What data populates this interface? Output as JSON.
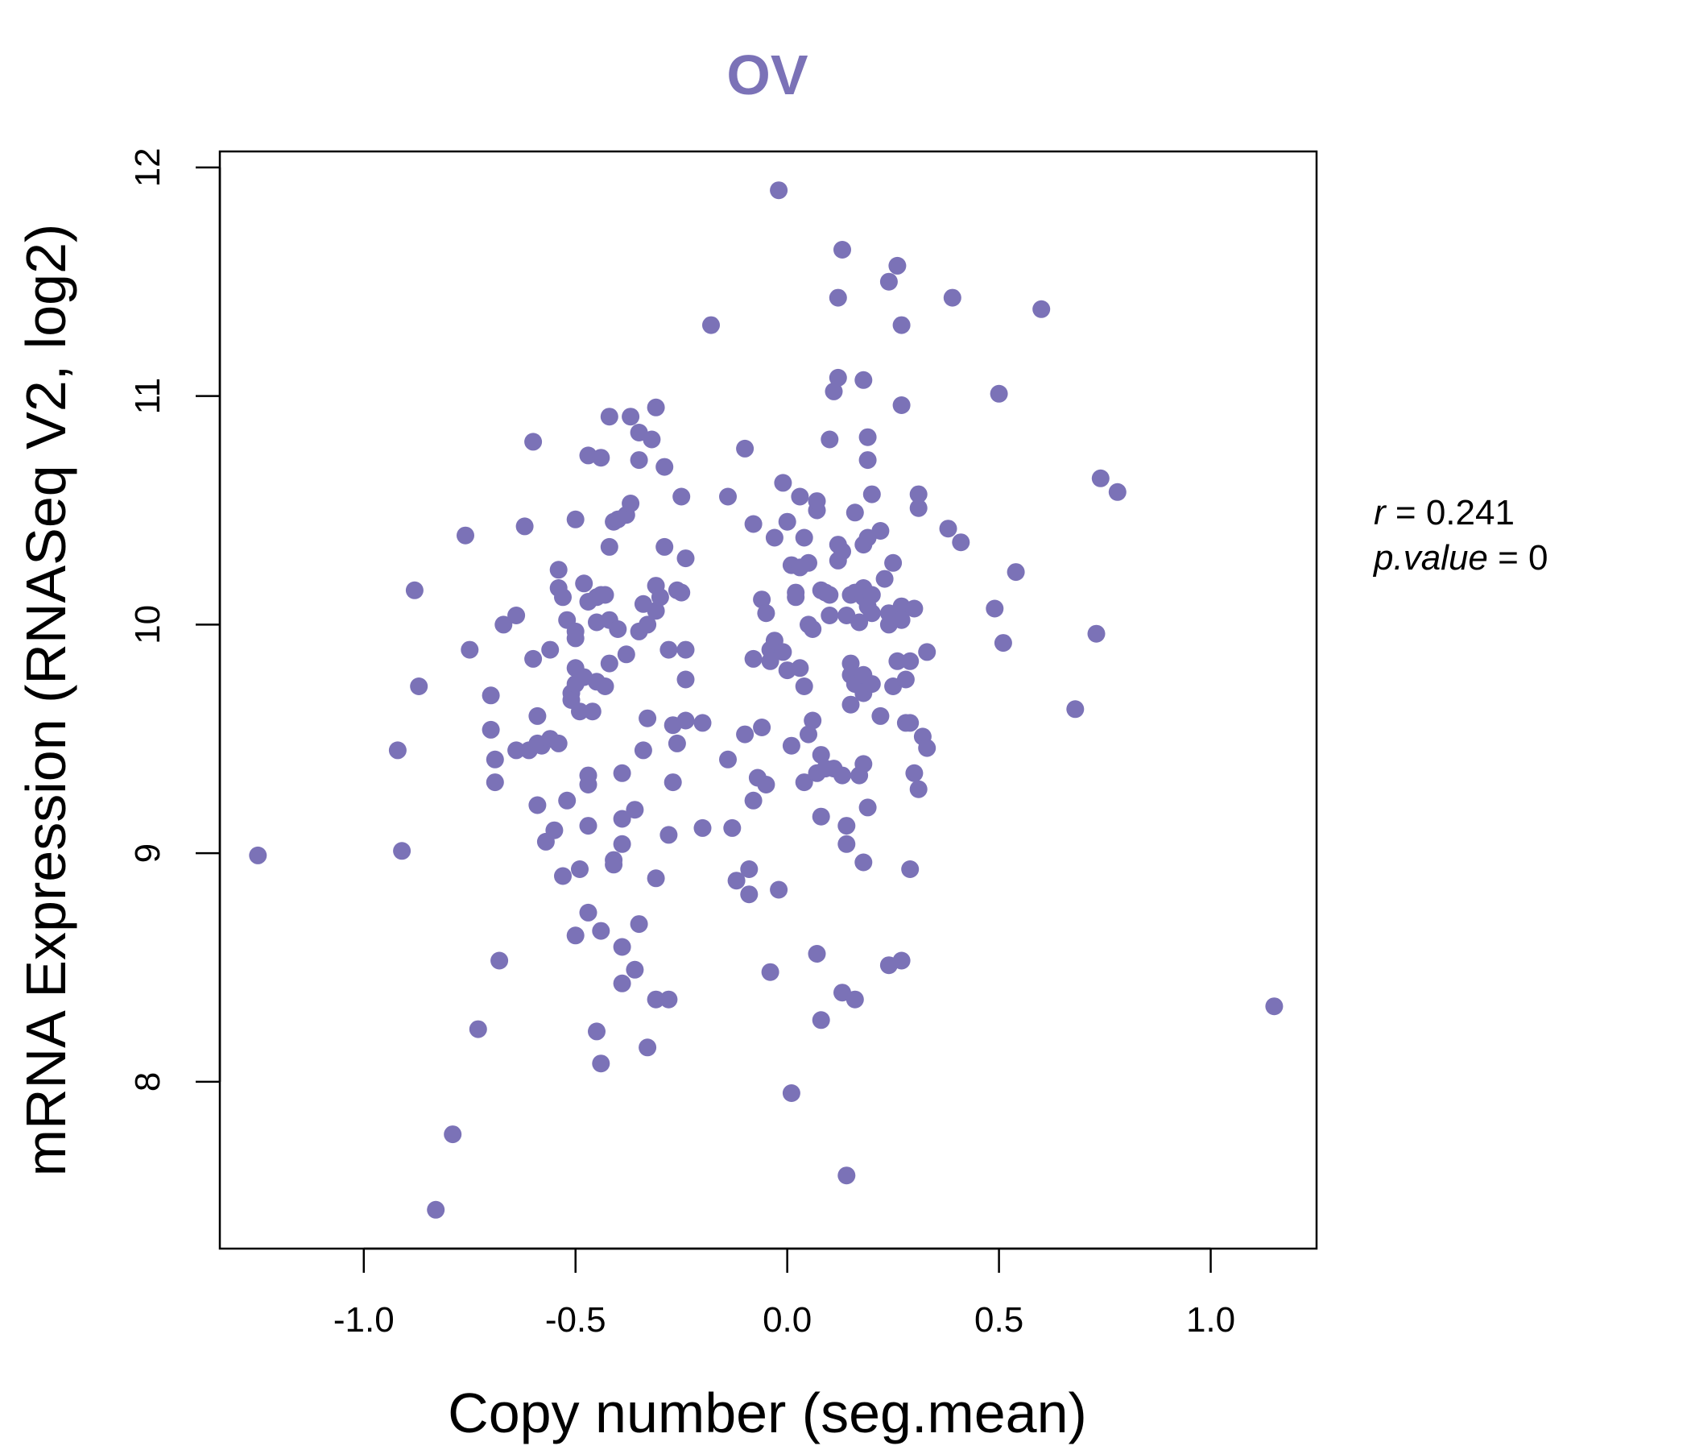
{
  "chart_data": {
    "type": "scatter",
    "title": "OV",
    "xlabel": "Copy number (seg.mean)",
    "ylabel": "mRNA Expression (RNASeq V2, log2)",
    "xlim": [
      -1.34,
      1.25
    ],
    "ylim": [
      7.27,
      12.07
    ],
    "x_ticks": [
      -1.0,
      -0.5,
      0.0,
      0.5,
      1.0
    ],
    "x_tick_labels": [
      "-1.0",
      "-0.5",
      "0.0",
      "0.5",
      "1.0"
    ],
    "y_ticks": [
      8,
      9,
      10,
      11,
      12
    ],
    "y_tick_labels": [
      "8",
      "9",
      "10",
      "11",
      "12"
    ],
    "stats": {
      "r_label": "r",
      "r_value": "0.241",
      "p_label": "p.value",
      "p_value": "0"
    },
    "colors": {
      "points": "#7b72b7",
      "title": "#7b72b7",
      "axes": "#000000"
    },
    "grid": false,
    "points": [
      [
        -1.25,
        8.99
      ],
      [
        -0.92,
        9.45
      ],
      [
        -0.91,
        9.01
      ],
      [
        -0.88,
        10.15
      ],
      [
        -0.87,
        9.73
      ],
      [
        -0.83,
        7.44
      ],
      [
        -0.79,
        7.77
      ],
      [
        -0.76,
        10.39
      ],
      [
        -0.75,
        9.89
      ],
      [
        -0.73,
        8.23
      ],
      [
        -0.7,
        9.69
      ],
      [
        -0.7,
        9.54
      ],
      [
        -0.69,
        9.41
      ],
      [
        -0.69,
        9.31
      ],
      [
        -0.68,
        8.53
      ],
      [
        -0.67,
        10.0
      ],
      [
        -0.64,
        10.04
      ],
      [
        -0.64,
        9.45
      ],
      [
        -0.62,
        10.43
      ],
      [
        -0.61,
        9.45
      ],
      [
        -0.6,
        10.8
      ],
      [
        -0.6,
        9.85
      ],
      [
        -0.59,
        9.6
      ],
      [
        -0.59,
        9.48
      ],
      [
        -0.59,
        9.21
      ],
      [
        -0.58,
        9.47
      ],
      [
        -0.57,
        9.05
      ],
      [
        -0.56,
        9.89
      ],
      [
        -0.56,
        9.5
      ],
      [
        -0.55,
        9.1
      ],
      [
        -0.54,
        10.24
      ],
      [
        -0.54,
        10.16
      ],
      [
        -0.54,
        9.48
      ],
      [
        -0.53,
        10.12
      ],
      [
        -0.53,
        8.9
      ],
      [
        -0.52,
        10.02
      ],
      [
        -0.52,
        9.23
      ],
      [
        -0.51,
        9.7
      ],
      [
        -0.51,
        9.67
      ],
      [
        -0.5,
        10.46
      ],
      [
        -0.5,
        9.97
      ],
      [
        -0.5,
        9.94
      ],
      [
        -0.5,
        9.81
      ],
      [
        -0.5,
        9.74
      ],
      [
        -0.5,
        8.64
      ],
      [
        -0.49,
        9.62
      ],
      [
        -0.49,
        8.93
      ],
      [
        -0.48,
        10.18
      ],
      [
        -0.48,
        9.77
      ],
      [
        -0.47,
        10.74
      ],
      [
        -0.47,
        10.1
      ],
      [
        -0.47,
        9.34
      ],
      [
        -0.47,
        9.3
      ],
      [
        -0.47,
        9.12
      ],
      [
        -0.47,
        8.74
      ],
      [
        -0.46,
        9.62
      ],
      [
        -0.45,
        10.12
      ],
      [
        -0.45,
        10.01
      ],
      [
        -0.45,
        9.75
      ],
      [
        -0.45,
        8.22
      ],
      [
        -0.44,
        10.73
      ],
      [
        -0.44,
        10.13
      ],
      [
        -0.44,
        8.66
      ],
      [
        -0.44,
        8.08
      ],
      [
        -0.43,
        10.13
      ],
      [
        -0.43,
        9.73
      ],
      [
        -0.42,
        10.91
      ],
      [
        -0.42,
        10.34
      ],
      [
        -0.42,
        10.02
      ],
      [
        -0.42,
        9.83
      ],
      [
        -0.41,
        10.45
      ],
      [
        -0.41,
        8.97
      ],
      [
        -0.41,
        8.95
      ],
      [
        -0.4,
        10.46
      ],
      [
        -0.4,
        9.98
      ],
      [
        -0.39,
        9.35
      ],
      [
        -0.39,
        9.15
      ],
      [
        -0.39,
        9.04
      ],
      [
        -0.39,
        8.59
      ],
      [
        -0.39,
        8.43
      ],
      [
        -0.38,
        10.48
      ],
      [
        -0.38,
        9.87
      ],
      [
        -0.37,
        10.53
      ],
      [
        -0.37,
        10.91
      ],
      [
        -0.36,
        9.19
      ],
      [
        -0.36,
        8.49
      ],
      [
        -0.35,
        10.72
      ],
      [
        -0.35,
        10.84
      ],
      [
        -0.35,
        9.97
      ],
      [
        -0.35,
        8.69
      ],
      [
        -0.34,
        10.09
      ],
      [
        -0.34,
        9.45
      ],
      [
        -0.33,
        10.0
      ],
      [
        -0.33,
        9.59
      ],
      [
        -0.33,
        8.15
      ],
      [
        -0.32,
        10.81
      ],
      [
        -0.31,
        10.95
      ],
      [
        -0.31,
        10.17
      ],
      [
        -0.31,
        10.06
      ],
      [
        -0.31,
        8.36
      ],
      [
        -0.31,
        8.89
      ],
      [
        -0.3,
        10.12
      ],
      [
        -0.29,
        10.69
      ],
      [
        -0.29,
        10.34
      ],
      [
        -0.28,
        9.89
      ],
      [
        -0.28,
        9.08
      ],
      [
        -0.28,
        8.36
      ],
      [
        -0.27,
        9.56
      ],
      [
        -0.27,
        9.31
      ],
      [
        -0.26,
        10.15
      ],
      [
        -0.26,
        9.48
      ],
      [
        -0.25,
        10.14
      ],
      [
        -0.25,
        10.56
      ],
      [
        -0.24,
        10.29
      ],
      [
        -0.24,
        9.89
      ],
      [
        -0.24,
        9.76
      ],
      [
        -0.24,
        9.58
      ],
      [
        -0.2,
        9.57
      ],
      [
        -0.2,
        9.11
      ],
      [
        -0.18,
        11.31
      ],
      [
        -0.14,
        10.56
      ],
      [
        -0.14,
        9.41
      ],
      [
        -0.13,
        9.11
      ],
      [
        -0.12,
        8.88
      ],
      [
        -0.1,
        10.77
      ],
      [
        -0.1,
        9.52
      ],
      [
        -0.09,
        8.93
      ],
      [
        -0.09,
        8.82
      ],
      [
        -0.08,
        10.44
      ],
      [
        -0.08,
        9.85
      ],
      [
        -0.08,
        9.23
      ],
      [
        -0.07,
        9.33
      ],
      [
        -0.06,
        10.11
      ],
      [
        -0.06,
        9.55
      ],
      [
        -0.05,
        10.05
      ],
      [
        -0.05,
        9.3
      ],
      [
        -0.04,
        9.89
      ],
      [
        -0.04,
        9.84
      ],
      [
        -0.04,
        8.48
      ],
      [
        -0.03,
        9.93
      ],
      [
        -0.03,
        10.38
      ],
      [
        -0.02,
        11.9
      ],
      [
        -0.02,
        8.84
      ],
      [
        -0.01,
        9.88
      ],
      [
        -0.01,
        10.62
      ],
      [
        0.0,
        10.45
      ],
      [
        0.0,
        9.8
      ],
      [
        0.01,
        10.26
      ],
      [
        0.01,
        9.47
      ],
      [
        0.01,
        7.95
      ],
      [
        0.02,
        10.14
      ],
      [
        0.02,
        10.12
      ],
      [
        0.03,
        10.25
      ],
      [
        0.03,
        9.81
      ],
      [
        0.03,
        10.56
      ],
      [
        0.04,
        9.73
      ],
      [
        0.04,
        10.38
      ],
      [
        0.04,
        9.31
      ],
      [
        0.05,
        10.0
      ],
      [
        0.05,
        10.27
      ],
      [
        0.05,
        9.52
      ],
      [
        0.06,
        9.98
      ],
      [
        0.06,
        9.58
      ],
      [
        0.07,
        10.5
      ],
      [
        0.07,
        10.54
      ],
      [
        0.07,
        9.35
      ],
      [
        0.07,
        8.56
      ],
      [
        0.08,
        10.15
      ],
      [
        0.08,
        9.43
      ],
      [
        0.08,
        9.16
      ],
      [
        0.08,
        8.27
      ],
      [
        0.09,
        10.14
      ],
      [
        0.09,
        9.37
      ],
      [
        0.1,
        10.81
      ],
      [
        0.1,
        10.13
      ],
      [
        0.1,
        10.04
      ],
      [
        0.11,
        11.02
      ],
      [
        0.11,
        9.37
      ],
      [
        0.12,
        11.08
      ],
      [
        0.12,
        10.35
      ],
      [
        0.12,
        10.28
      ],
      [
        0.12,
        11.43
      ],
      [
        0.13,
        11.64
      ],
      [
        0.13,
        10.32
      ],
      [
        0.13,
        8.39
      ],
      [
        0.13,
        9.34
      ],
      [
        0.14,
        9.12
      ],
      [
        0.14,
        9.04
      ],
      [
        0.14,
        7.59
      ],
      [
        0.14,
        10.04
      ],
      [
        0.15,
        10.13
      ],
      [
        0.15,
        9.83
      ],
      [
        0.15,
        9.78
      ],
      [
        0.15,
        9.65
      ],
      [
        0.16,
        10.49
      ],
      [
        0.16,
        10.14
      ],
      [
        0.16,
        9.74
      ],
      [
        0.16,
        8.36
      ],
      [
        0.17,
        10.01
      ],
      [
        0.17,
        9.75
      ],
      [
        0.17,
        9.34
      ],
      [
        0.18,
        10.16
      ],
      [
        0.18,
        10.12
      ],
      [
        0.18,
        9.78
      ],
      [
        0.18,
        9.7
      ],
      [
        0.18,
        9.39
      ],
      [
        0.18,
        8.96
      ],
      [
        0.18,
        11.07
      ],
      [
        0.18,
        10.35
      ],
      [
        0.19,
        10.72
      ],
      [
        0.19,
        10.38
      ],
      [
        0.19,
        10.82
      ],
      [
        0.19,
        10.08
      ],
      [
        0.19,
        9.2
      ],
      [
        0.2,
        10.57
      ],
      [
        0.2,
        10.13
      ],
      [
        0.2,
        10.05
      ],
      [
        0.2,
        9.74
      ],
      [
        0.22,
        10.41
      ],
      [
        0.22,
        9.6
      ],
      [
        0.23,
        10.2
      ],
      [
        0.24,
        10.05
      ],
      [
        0.24,
        10.0
      ],
      [
        0.24,
        8.51
      ],
      [
        0.24,
        11.5
      ],
      [
        0.25,
        10.27
      ],
      [
        0.25,
        9.73
      ],
      [
        0.26,
        11.57
      ],
      [
        0.26,
        9.84
      ],
      [
        0.27,
        10.08
      ],
      [
        0.27,
        10.02
      ],
      [
        0.27,
        11.31
      ],
      [
        0.27,
        10.96
      ],
      [
        0.27,
        8.53
      ],
      [
        0.28,
        9.76
      ],
      [
        0.28,
        9.57
      ],
      [
        0.29,
        9.84
      ],
      [
        0.29,
        9.57
      ],
      [
        0.29,
        8.93
      ],
      [
        0.3,
        10.07
      ],
      [
        0.3,
        9.35
      ],
      [
        0.31,
        10.51
      ],
      [
        0.31,
        10.57
      ],
      [
        0.31,
        9.28
      ],
      [
        0.32,
        9.51
      ],
      [
        0.33,
        9.46
      ],
      [
        0.33,
        9.88
      ],
      [
        0.38,
        10.42
      ],
      [
        0.39,
        11.43
      ],
      [
        0.41,
        10.36
      ],
      [
        0.49,
        10.07
      ],
      [
        0.5,
        11.01
      ],
      [
        0.51,
        9.92
      ],
      [
        0.54,
        10.23
      ],
      [
        0.6,
        11.38
      ],
      [
        0.68,
        9.63
      ],
      [
        0.73,
        9.96
      ],
      [
        0.74,
        10.64
      ],
      [
        0.78,
        10.58
      ],
      [
        1.15,
        8.33
      ]
    ]
  }
}
